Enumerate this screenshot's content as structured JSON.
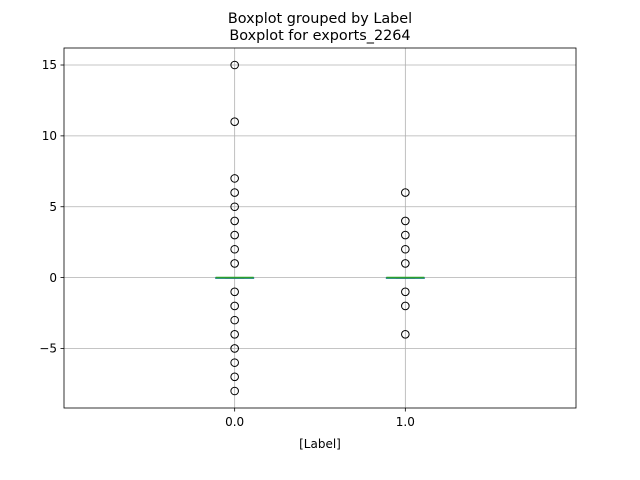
{
  "chart_data": {
    "type": "boxplot",
    "suptitle": "Boxplot grouped by Label",
    "title": "Boxplot for exports_2264",
    "xlabel": "[Label]",
    "ylabel": "",
    "grid": true,
    "ylim": [
      -9.2,
      16.2
    ],
    "yticks": [
      -5,
      0,
      5,
      10,
      15
    ],
    "ytick_labels": [
      "−5",
      "0",
      "5",
      "10",
      "15"
    ],
    "categories": [
      "0.0",
      "1.0"
    ],
    "groups": [
      {
        "name": "0.0",
        "median": 0,
        "q1": 0,
        "q3": 0,
        "whisker_low": 0,
        "whisker_high": 0,
        "outliers": [
          15,
          11,
          7,
          6,
          5,
          4,
          3,
          2,
          1,
          -1,
          -2,
          -3,
          -4,
          -5,
          -6,
          -7,
          -8
        ]
      },
      {
        "name": "1.0",
        "median": 0,
        "q1": 0,
        "q3": 0,
        "whisker_low": 0,
        "whisker_high": 0,
        "outliers": [
          6,
          4,
          3,
          2,
          1,
          -1,
          -2,
          -4
        ]
      }
    ],
    "colors": {
      "median": "#2ca02c",
      "box": "#1f77b4",
      "grid": "#b0b0b0",
      "outlier": "#000000"
    }
  }
}
